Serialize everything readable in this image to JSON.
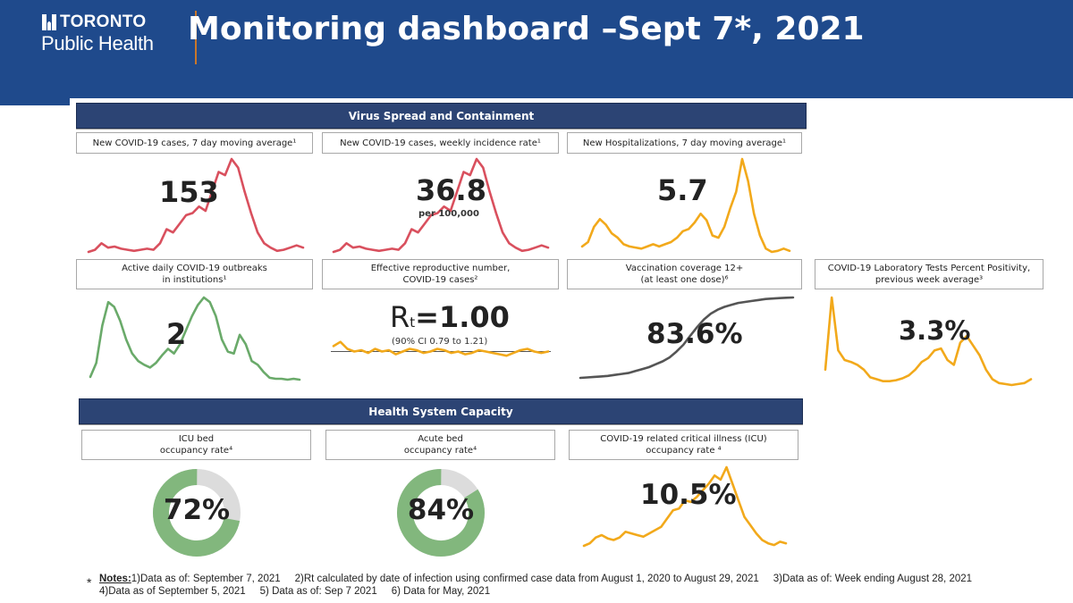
{
  "header": {
    "logo_line1": "TORONTO",
    "logo_line2": "Public Health",
    "title": "Monitoring dashboard –Sept 7*, 2021",
    "background": "#1f4a8c"
  },
  "sections": {
    "virus": "Virus Spread and Containment",
    "health": "Health System Capacity"
  },
  "panels": {
    "cases": {
      "label": "New COVID-19 cases, 7 day moving average¹",
      "value": "153"
    },
    "incidence": {
      "label": "New COVID-19 cases, weekly incidence rate¹",
      "value": "36.8",
      "unit": "per 100,000"
    },
    "hosp": {
      "label": "New Hospitalizations, 7 day moving average¹",
      "value": "5.7"
    },
    "outbreaks": {
      "label": "Active daily COVID-19 outbreaks\nin institutions¹",
      "value": "2"
    },
    "rt": {
      "label": "Effective reproductive number,\nCOVID-19 cases²",
      "symbol": "R",
      "subscript": "t",
      "value": "=1.00",
      "ci": "(90% CI 0.79 to 1.21)"
    },
    "vacc": {
      "label": "Vaccination coverage 12+\n(at least one dose)⁶",
      "value": "83.6%"
    },
    "positivity": {
      "label": "COVID-19 Laboratory Tests Percent Positivity,\nprevious week average³",
      "value": "3.3%"
    },
    "icu": {
      "label": "ICU bed\noccupancy rate⁴",
      "value": "72%"
    },
    "acute": {
      "label": "Acute bed\noccupancy rate⁴",
      "value": "84%"
    },
    "critical": {
      "label": "COVID-19 related critical illness (ICU)\noccupancy rate ⁴",
      "value": "10.5%"
    }
  },
  "notes": {
    "star": "*",
    "label": "Notes:",
    "n1": "1)Data as of: September 7, 2021",
    "n2": "2)Rt calculated by date of infection using confirmed case data from August 1, 2020 to August 29, 2021",
    "n3": "3)Data as of: Week ending August 28, 2021",
    "n4": "4)Data as of September 5, 2021",
    "n5": "5) Data as of: Sep 7 2021",
    "n6": "6) Data for May, 2021"
  },
  "colors": {
    "red": "#d9505e",
    "orange": "#f2a91b",
    "green": "#6aaa6a",
    "gray": "#555555",
    "donut_green": "#82b77d",
    "donut_gray": "#dcdcdc",
    "section_bar": "#2c4474"
  },
  "chart_data": [
    {
      "id": "cases",
      "type": "line",
      "color": "red",
      "values": [
        4,
        6,
        12,
        8,
        9,
        7,
        6,
        5,
        6,
        7,
        6,
        12,
        25,
        22,
        30,
        38,
        40,
        46,
        42,
        60,
        78,
        75,
        90,
        82,
        60,
        40,
        22,
        12,
        8,
        5,
        6,
        8,
        10,
        8
      ]
    },
    {
      "id": "incidence",
      "type": "line",
      "color": "red",
      "values": [
        4,
        6,
        12,
        8,
        9,
        7,
        6,
        5,
        6,
        7,
        6,
        12,
        25,
        22,
        30,
        38,
        40,
        46,
        42,
        60,
        78,
        75,
        90,
        82,
        60,
        40,
        22,
        12,
        8,
        5,
        6,
        8,
        10,
        8
      ]
    },
    {
      "id": "hosp",
      "type": "line",
      "color": "orange",
      "values": [
        10,
        14,
        28,
        35,
        30,
        22,
        18,
        12,
        10,
        9,
        8,
        10,
        12,
        10,
        12,
        14,
        18,
        24,
        26,
        32,
        40,
        34,
        20,
        18,
        28,
        45,
        60,
        90,
        70,
        40,
        20,
        8,
        5,
        6,
        8,
        6
      ]
    },
    {
      "id": "outbreaks",
      "type": "line",
      "color": "green",
      "values": [
        5,
        20,
        60,
        85,
        80,
        65,
        45,
        30,
        22,
        18,
        15,
        20,
        28,
        35,
        30,
        40,
        55,
        70,
        82,
        90,
        85,
        70,
        45,
        32,
        30,
        50,
        40,
        22,
        18,
        10,
        4,
        3,
        3,
        2,
        3,
        2
      ]
    },
    {
      "id": "rt",
      "type": "line",
      "color": "orange",
      "reference": 1.0,
      "values": [
        1.2,
        1.35,
        1.1,
        1.0,
        1.05,
        0.95,
        1.1,
        1.0,
        1.05,
        0.9,
        1.0,
        1.1,
        1.05,
        0.95,
        1.0,
        1.1,
        1.05,
        0.95,
        1.0,
        0.9,
        0.95,
        1.05,
        1.0,
        0.95,
        0.9,
        0.85,
        0.95,
        1.05,
        1.1,
        1.0,
        0.95,
        1.0
      ]
    },
    {
      "id": "vacc",
      "type": "line",
      "color": "gray",
      "values": [
        1,
        1.5,
        2,
        2.5,
        3,
        4,
        5,
        6,
        8,
        10,
        12,
        15,
        18,
        22,
        28,
        35,
        44,
        53,
        61,
        67,
        71,
        74,
        76,
        78,
        79,
        80,
        81,
        82,
        82.5,
        83,
        83.3,
        83.6
      ]
    },
    {
      "id": "positivity",
      "type": "line",
      "color": "orange",
      "values": [
        20,
        95,
        40,
        30,
        28,
        25,
        20,
        12,
        10,
        8,
        8,
        9,
        11,
        14,
        20,
        28,
        32,
        40,
        42,
        30,
        25,
        48,
        55,
        45,
        35,
        20,
        10,
        6,
        5,
        4,
        5,
        6,
        10
      ]
    },
    {
      "id": "critical",
      "type": "line",
      "color": "orange",
      "values": [
        5,
        8,
        15,
        18,
        14,
        12,
        15,
        22,
        20,
        18,
        16,
        20,
        24,
        28,
        38,
        48,
        50,
        60,
        58,
        64,
        72,
        80,
        90,
        85,
        100,
        80,
        60,
        40,
        30,
        20,
        12,
        8,
        6,
        10,
        8
      ]
    },
    {
      "id": "icu_occupancy",
      "type": "pie",
      "color": "donut_green",
      "slices": [
        {
          "label": "occupied",
          "value": 72
        },
        {
          "label": "available",
          "value": 28
        }
      ]
    },
    {
      "id": "acute_occupancy",
      "type": "pie",
      "color": "donut_green",
      "slices": [
        {
          "label": "occupied",
          "value": 84
        },
        {
          "label": "available",
          "value": 16
        }
      ]
    }
  ]
}
